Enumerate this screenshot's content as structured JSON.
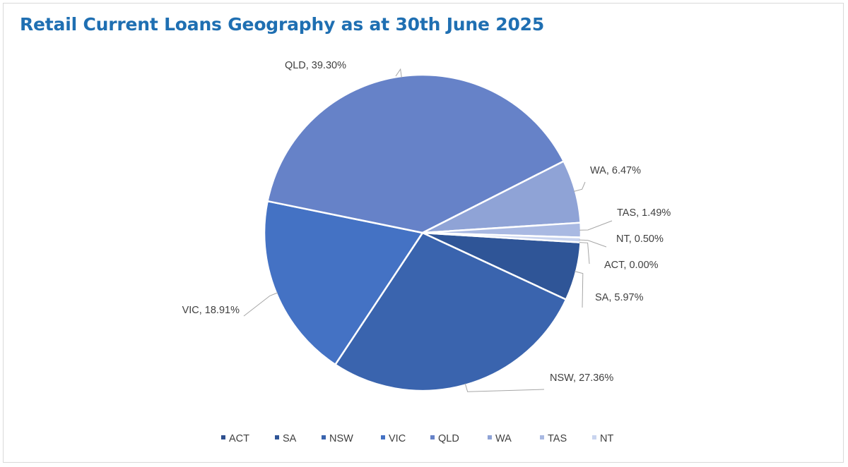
{
  "title": "Retail Current Loans Geography as at 30th June 2025",
  "chart_data": {
    "type": "pie",
    "title": "Retail Current Loans Geography as at 30th June 2025",
    "legend_position": "bottom",
    "slices": [
      {
        "name": "ACT",
        "value": 0.0,
        "label": "ACT, 0.00%",
        "color": "#2e4f8f"
      },
      {
        "name": "SA",
        "value": 5.97,
        "label": "SA, 5.97%",
        "color": "#2f5597"
      },
      {
        "name": "NSW",
        "value": 27.36,
        "label": "NSW, 27.36%",
        "color": "#3a64ae"
      },
      {
        "name": "VIC",
        "value": 18.91,
        "label": "VIC, 18.91%",
        "color": "#4472c4"
      },
      {
        "name": "QLD",
        "value": 39.3,
        "label": "QLD, 39.30%",
        "color": "#6682c8"
      },
      {
        "name": "WA",
        "value": 6.47,
        "label": "WA, 6.47%",
        "color": "#8fa3d6"
      },
      {
        "name": "TAS",
        "value": 1.49,
        "label": "TAS, 1.49%",
        "color": "#a9b9e2"
      },
      {
        "name": "NT",
        "value": 0.5,
        "label": "NT, 0.50%",
        "color": "#c9d4ef"
      }
    ]
  }
}
